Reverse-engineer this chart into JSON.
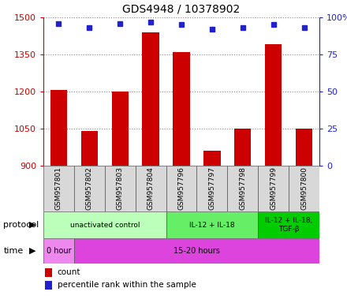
{
  "title": "GDS4948 / 10378902",
  "samples": [
    "GSM957801",
    "GSM957802",
    "GSM957803",
    "GSM957804",
    "GSM957796",
    "GSM957797",
    "GSM957798",
    "GSM957799",
    "GSM957800"
  ],
  "counts": [
    1205,
    1040,
    1200,
    1440,
    1360,
    960,
    1050,
    1390,
    1050
  ],
  "percentiles": [
    96,
    93,
    96,
    97,
    95,
    92,
    93,
    95,
    93
  ],
  "ymin": 900,
  "ymax": 1500,
  "yticks": [
    900,
    1050,
    1200,
    1350,
    1500
  ],
  "right_yticks": [
    0,
    25,
    50,
    75,
    100
  ],
  "bar_color": "#cc0000",
  "dot_color": "#2222cc",
  "protocol_groups": [
    {
      "label": "unactivated control",
      "start": 0,
      "end": 4,
      "color": "#bbffbb"
    },
    {
      "label": "IL-12 + IL-18",
      "start": 4,
      "end": 7,
      "color": "#66ee66"
    },
    {
      "label": "IL-12 + IL-18,\nTGF-β",
      "start": 7,
      "end": 9,
      "color": "#00cc00"
    }
  ],
  "time_groups": [
    {
      "label": "0 hour",
      "start": 0,
      "end": 1,
      "color": "#ee88ee"
    },
    {
      "label": "15-20 hours",
      "start": 1,
      "end": 9,
      "color": "#dd44dd"
    }
  ],
  "legend_count_label": "count",
  "legend_pct_label": "percentile rank within the sample",
  "left_axis_color": "#cc0000",
  "right_axis_color": "#2222cc",
  "bg_color": "#ffffff"
}
